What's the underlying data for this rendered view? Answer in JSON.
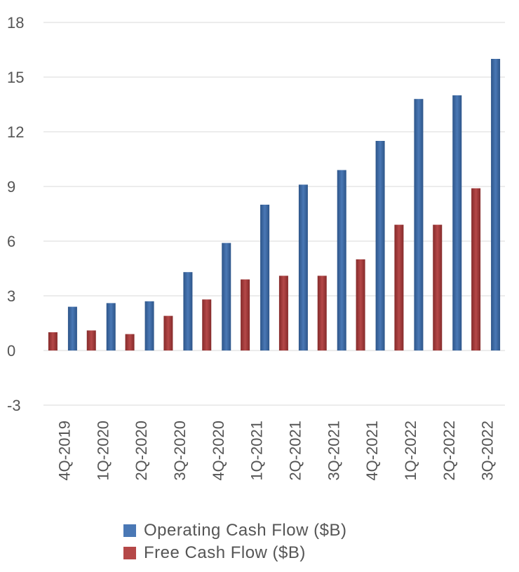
{
  "chart_data": {
    "type": "bar",
    "title": "",
    "xlabel": "",
    "ylabel": "",
    "ylim": [
      -3,
      18
    ],
    "yticks": [
      18,
      15,
      12,
      9,
      6,
      3,
      0,
      -3
    ],
    "grid": true,
    "legend_position": "bottom-center",
    "categories": [
      "4Q-2019",
      "1Q-2020",
      "2Q-2020",
      "3Q-2020",
      "4Q-2020",
      "1Q-2021",
      "2Q-2021",
      "3Q-2021",
      "4Q-2021",
      "1Q-2022",
      "2Q-2022",
      "3Q-2022"
    ],
    "series": [
      {
        "name": "Operating Cash Flow ($B)",
        "color": "#3d6aa5",
        "values": [
          2.4,
          2.6,
          2.7,
          4.3,
          5.9,
          8.0,
          9.1,
          9.9,
          11.5,
          13.8,
          14.0,
          16.0
        ]
      },
      {
        "name": "Free Cash Flow ($B)",
        "color": "#a63a3a",
        "values": [
          1.0,
          1.1,
          0.9,
          1.9,
          2.8,
          3.9,
          4.1,
          4.1,
          5.0,
          6.9,
          6.9,
          8.9
        ]
      }
    ]
  }
}
